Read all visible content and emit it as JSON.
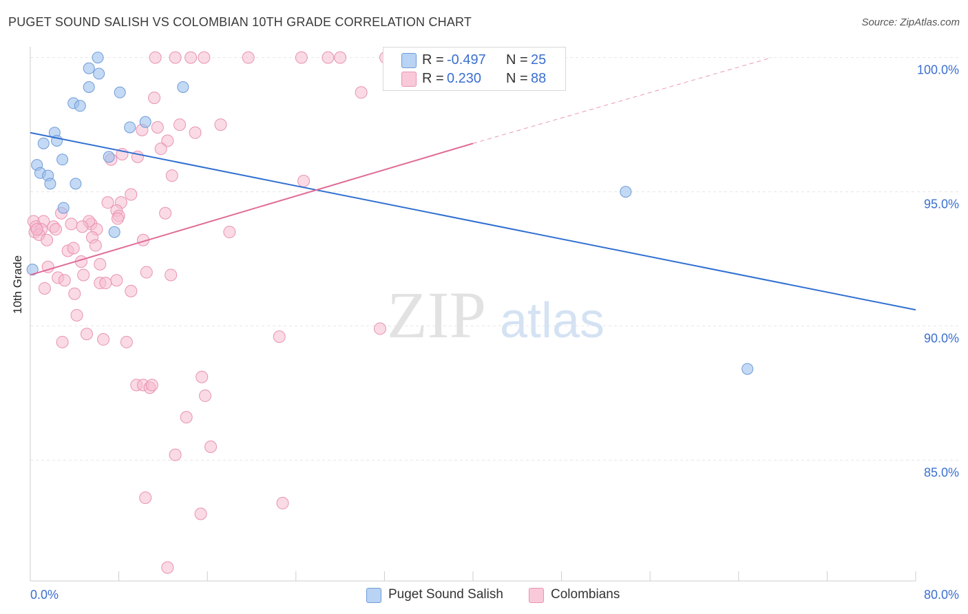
{
  "title": "PUGET SOUND SALISH VS COLOMBIAN 10TH GRADE CORRELATION CHART",
  "source": "Source: ZipAtlas.com",
  "watermark": {
    "zip": "ZIP",
    "atlas": "atlas"
  },
  "legend_top": [
    {
      "r_label": "R =",
      "r_value": "-0.497",
      "n_label": "N =",
      "n_value": "25"
    },
    {
      "r_label": "R =",
      "r_value": "0.230",
      "n_label": "N =",
      "n_value": "88"
    }
  ],
  "legend_bottom": [
    {
      "label": "Puget Sound Salish"
    },
    {
      "label": "Colombians"
    }
  ],
  "chart_data": {
    "type": "scatter",
    "xlabel": "",
    "ylabel": "10th Grade",
    "xlim": [
      0,
      80
    ],
    "ylim": [
      80.5,
      100.4
    ],
    "x_tick_labels": [
      "0.0%",
      "80.0%"
    ],
    "y_ticks": [
      100,
      95,
      90,
      85
    ],
    "y_tick_labels": [
      "100.0%",
      "95.0%",
      "90.0%",
      "85.0%"
    ],
    "grid": true,
    "colors": {
      "puget": "#9dc0ec",
      "puget_stroke": "#6e9bd8",
      "puget_line": "#2f6fd1",
      "colombians": "#f6bcd0",
      "colombians_stroke": "#e892b1",
      "colombians_line": "#e06b96",
      "tick_text": "#3a6fd0"
    },
    "series": [
      {
        "name": "Puget Sound Salish",
        "points": [
          [
            6.1,
            100
          ],
          [
            5.3,
            99.6
          ],
          [
            6.2,
            99.4
          ],
          [
            5.3,
            98.9
          ],
          [
            8.1,
            98.7
          ],
          [
            13.8,
            98.9
          ],
          [
            3.9,
            98.3
          ],
          [
            4.5,
            98.2
          ],
          [
            10.4,
            97.6
          ],
          [
            9.0,
            97.4
          ],
          [
            2.2,
            97.2
          ],
          [
            1.2,
            96.8
          ],
          [
            2.4,
            96.9
          ],
          [
            7.1,
            96.3
          ],
          [
            2.9,
            96.2
          ],
          [
            0.6,
            96.0
          ],
          [
            0.9,
            95.7
          ],
          [
            1.6,
            95.6
          ],
          [
            1.8,
            95.3
          ],
          [
            4.1,
            95.3
          ],
          [
            3.0,
            94.4
          ],
          [
            7.6,
            93.5
          ],
          [
            0.2,
            92.1
          ],
          [
            53.8,
            95.0
          ],
          [
            64.8,
            88.4
          ]
        ],
        "trend": [
          [
            0,
            97.2
          ],
          [
            80,
            90.6
          ]
        ]
      },
      {
        "name": "Colombians",
        "points": [
          [
            11.3,
            100
          ],
          [
            13.1,
            100
          ],
          [
            14.5,
            100
          ],
          [
            15.7,
            100
          ],
          [
            19.7,
            100
          ],
          [
            24.5,
            100
          ],
          [
            26.9,
            100
          ],
          [
            28.0,
            100
          ],
          [
            32.1,
            100
          ],
          [
            39.6,
            100
          ],
          [
            11.2,
            98.5
          ],
          [
            29.9,
            98.7
          ],
          [
            10.1,
            97.3
          ],
          [
            11.5,
            97.4
          ],
          [
            13.5,
            97.5
          ],
          [
            14.9,
            97.2
          ],
          [
            17.2,
            97.5
          ],
          [
            12.4,
            96.9
          ],
          [
            11.8,
            96.6
          ],
          [
            8.3,
            96.4
          ],
          [
            9.7,
            96.3
          ],
          [
            7.3,
            96.2
          ],
          [
            12.8,
            95.6
          ],
          [
            24.7,
            95.4
          ],
          [
            9.1,
            94.9
          ],
          [
            8.2,
            94.6
          ],
          [
            7.0,
            94.6
          ],
          [
            7.8,
            94.3
          ],
          [
            8.0,
            94.1
          ],
          [
            12.2,
            94.2
          ],
          [
            2.8,
            94.2
          ],
          [
            0.3,
            93.9
          ],
          [
            1.2,
            93.9
          ],
          [
            2.1,
            93.7
          ],
          [
            3.7,
            93.8
          ],
          [
            5.5,
            93.8
          ],
          [
            5.3,
            93.9
          ],
          [
            4.7,
            93.7
          ],
          [
            6.0,
            93.6
          ],
          [
            7.9,
            94.0
          ],
          [
            0.4,
            93.5
          ],
          [
            0.5,
            93.7
          ],
          [
            1.0,
            93.6
          ],
          [
            0.8,
            93.4
          ],
          [
            0.6,
            93.6
          ],
          [
            2.3,
            93.6
          ],
          [
            5.6,
            93.3
          ],
          [
            1.5,
            93.2
          ],
          [
            5.9,
            93.0
          ],
          [
            10.2,
            93.2
          ],
          [
            18.0,
            93.5
          ],
          [
            3.4,
            92.8
          ],
          [
            3.9,
            92.9
          ],
          [
            1.6,
            92.2
          ],
          [
            6.3,
            92.3
          ],
          [
            4.6,
            92.4
          ],
          [
            4.8,
            91.9
          ],
          [
            2.5,
            91.8
          ],
          [
            3.1,
            91.7
          ],
          [
            7.8,
            91.7
          ],
          [
            6.3,
            91.6
          ],
          [
            6.8,
            91.6
          ],
          [
            10.5,
            92.0
          ],
          [
            12.7,
            91.9
          ],
          [
            1.3,
            91.4
          ],
          [
            4.0,
            91.2
          ],
          [
            9.1,
            91.3
          ],
          [
            4.2,
            90.4
          ],
          [
            5.1,
            89.7
          ],
          [
            6.6,
            89.5
          ],
          [
            2.9,
            89.4
          ],
          [
            8.7,
            89.4
          ],
          [
            22.5,
            89.6
          ],
          [
            31.6,
            89.9
          ],
          [
            15.5,
            88.1
          ],
          [
            9.6,
            87.8
          ],
          [
            10.2,
            87.8
          ],
          [
            10.8,
            87.7
          ],
          [
            11.0,
            87.8
          ],
          [
            15.8,
            87.4
          ],
          [
            14.1,
            86.6
          ],
          [
            16.3,
            85.5
          ],
          [
            13.1,
            85.2
          ],
          [
            10.4,
            83.6
          ],
          [
            15.4,
            83.0
          ],
          [
            22.8,
            83.4
          ],
          [
            12.4,
            81.0
          ],
          [
            33.1,
            100
          ]
        ],
        "trend": [
          [
            0,
            91.9
          ],
          [
            40,
            96.8
          ]
        ],
        "trend_extension": [
          [
            40,
            96.8
          ],
          [
            67,
            100
          ]
        ]
      }
    ]
  }
}
